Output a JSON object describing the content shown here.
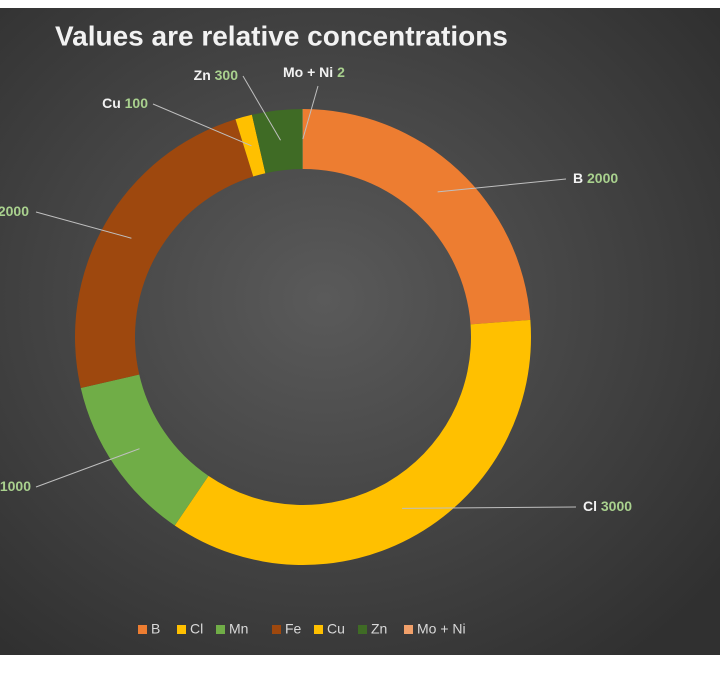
{
  "chart_data": {
    "type": "donut",
    "title": "Values are relative concentrations",
    "categories": [
      "B",
      "Cl",
      "Mn",
      "Fe",
      "Cu",
      "Zn",
      "Mo + Ni"
    ],
    "values": [
      2000,
      3000,
      1000,
      2000,
      100,
      300,
      2
    ],
    "colors": [
      "#ED7D31",
      "#FFC000",
      "#70AD47",
      "#9E480E",
      "#FFC000",
      "#3F6B25",
      "#F1A06A"
    ],
    "legend": "bottom"
  }
}
